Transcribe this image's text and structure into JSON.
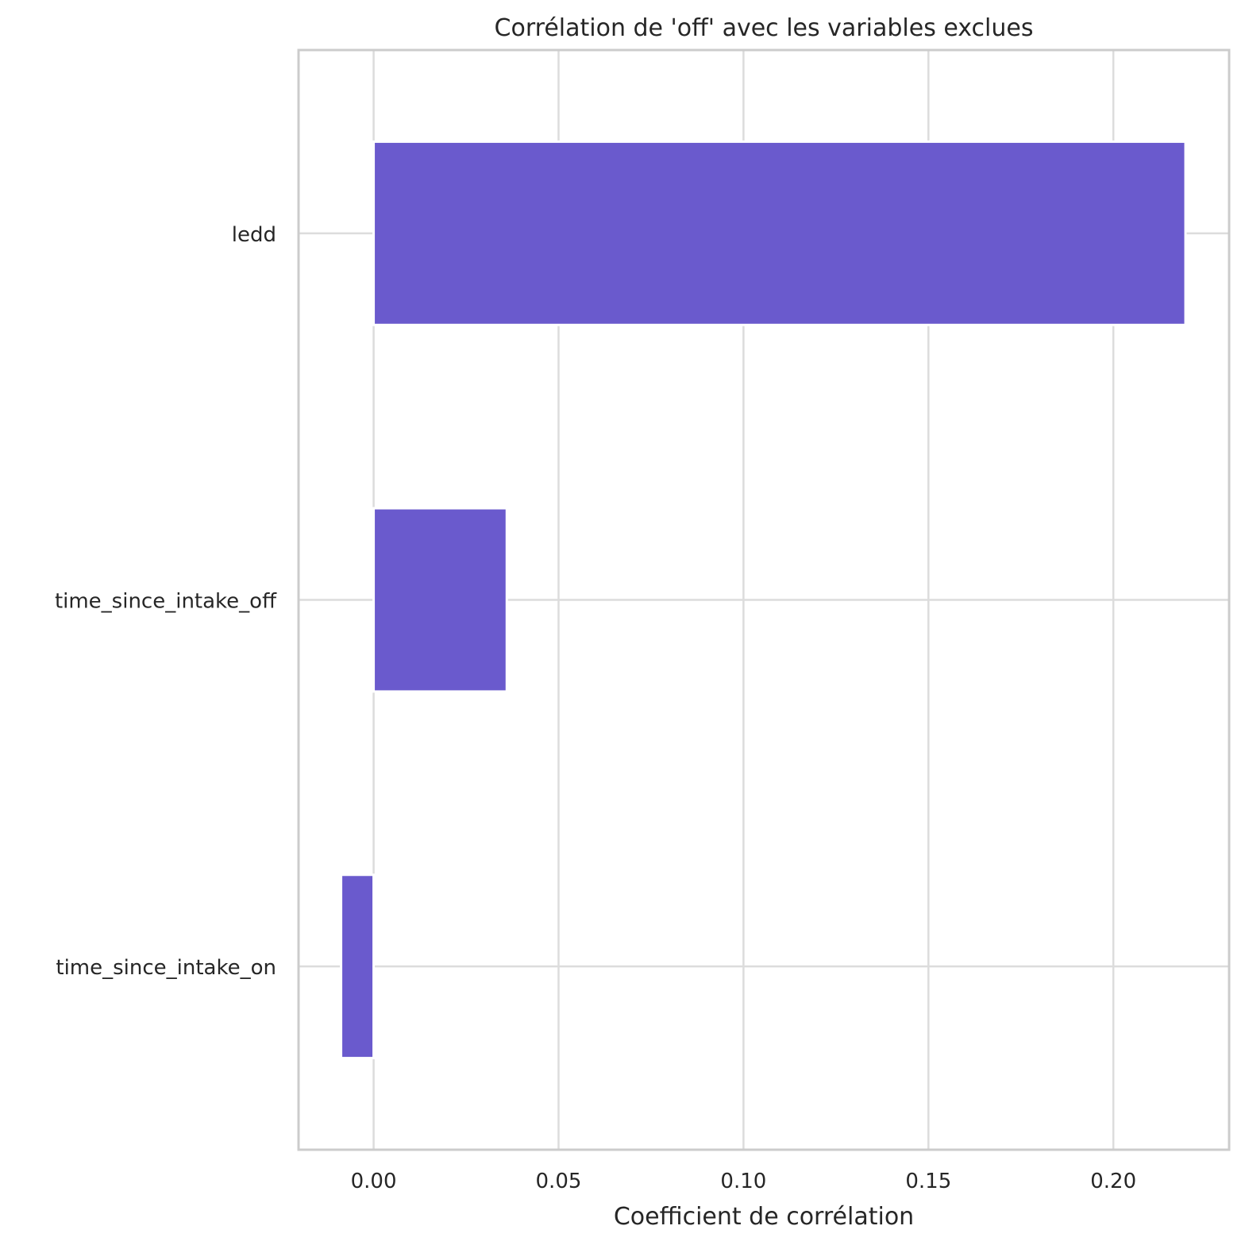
{
  "chart_data": {
    "type": "bar",
    "orientation": "horizontal",
    "title": "Corrélation de 'off' avec les variables exclues",
    "xlabel": "Coefficient de corrélation",
    "ylabel": "",
    "categories": [
      "ledd",
      "time_since_intake_off",
      "time_since_intake_on"
    ],
    "values": [
      0.2195,
      0.036,
      -0.0088
    ],
    "xlim": [
      -0.0203,
      0.2313
    ],
    "xticks": [
      0.0,
      0.05,
      0.1,
      0.15,
      0.2
    ],
    "xtick_labels": [
      "0.00",
      "0.05",
      "0.10",
      "0.15",
      "0.20"
    ],
    "grid": true,
    "legend": "none",
    "bar_color": "#6a5acd",
    "grid_color": "#dcdcdc",
    "frame_color": "#cccccc"
  }
}
